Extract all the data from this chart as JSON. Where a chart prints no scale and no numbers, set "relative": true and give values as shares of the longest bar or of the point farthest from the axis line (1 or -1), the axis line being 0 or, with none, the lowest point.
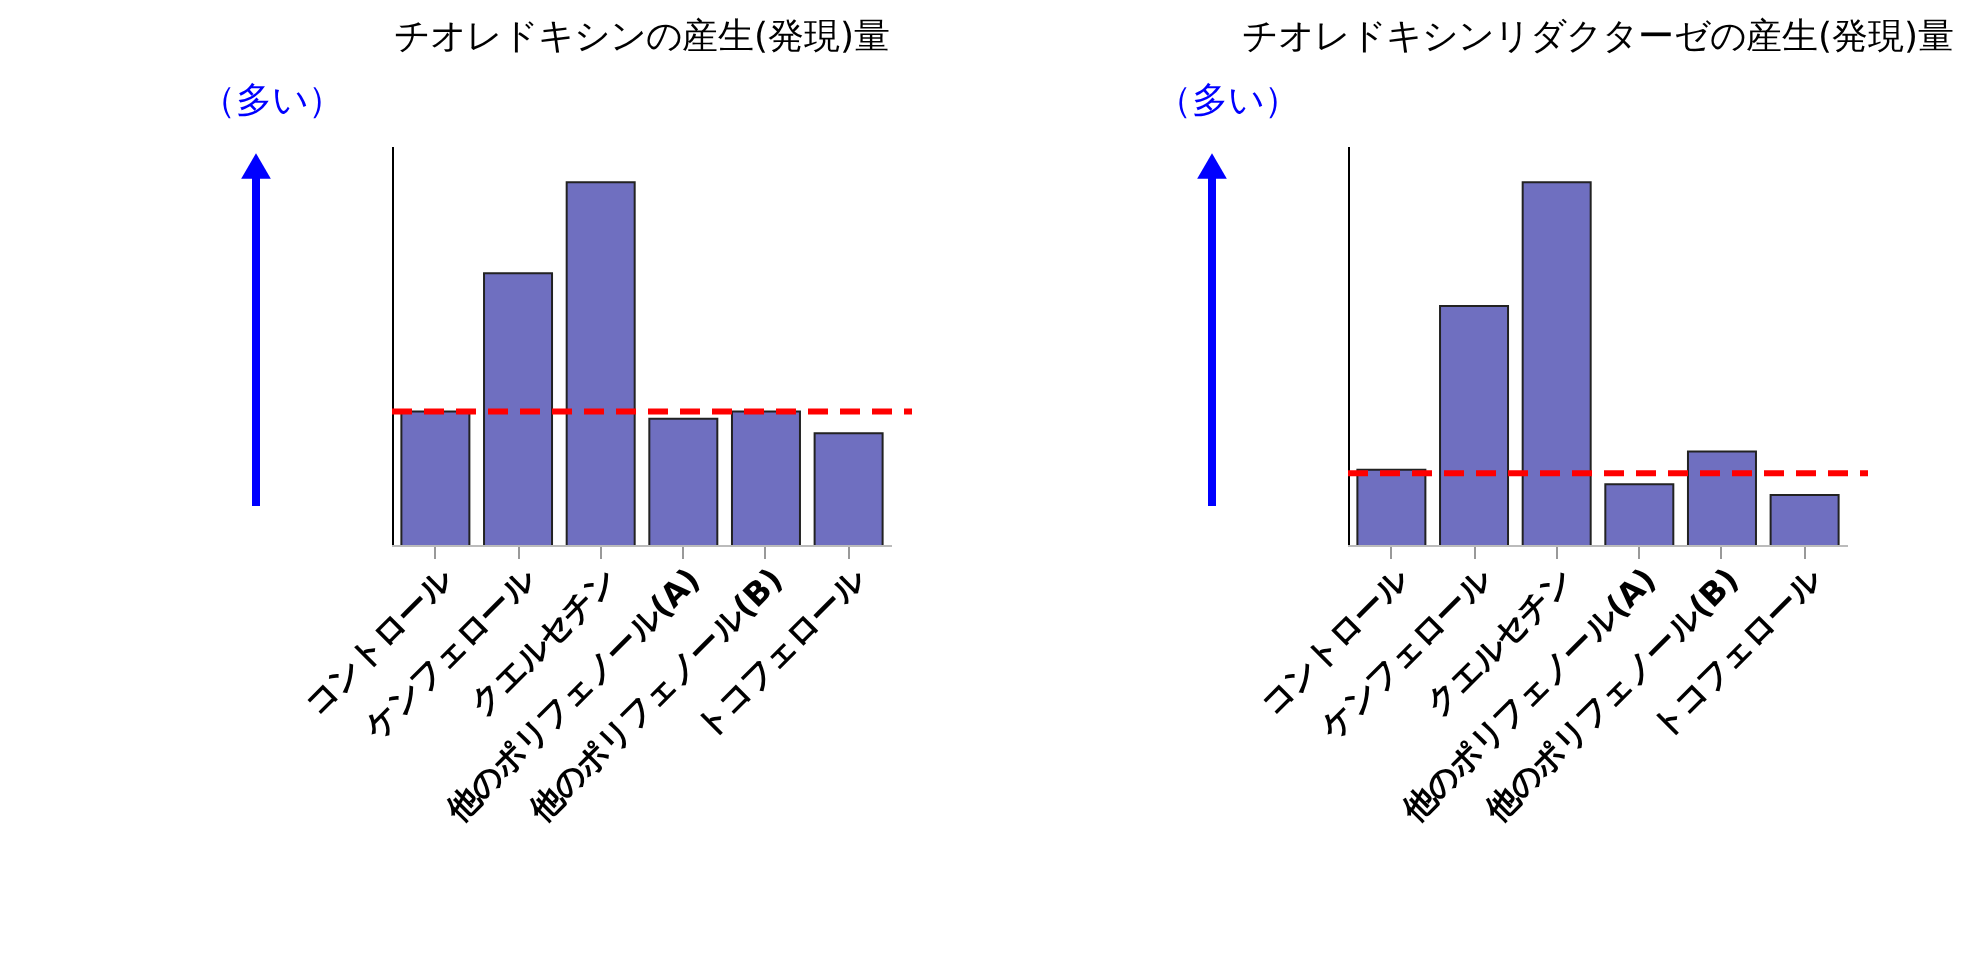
{
  "chart_data": [
    {
      "type": "bar",
      "title": "チオレドキシンの産生(発現)量",
      "relative": true,
      "categories": [
        "コントロール",
        "ケンフェロール",
        "クエルセチン",
        "他のポリフェノール(A)",
        "他のポリフェノール(B)",
        "トコフェロール"
      ],
      "values": [
        0.37,
        0.75,
        1.0,
        0.35,
        0.37,
        0.31
      ],
      "color": "#6f6fc0",
      "ref_lines": [
        {
          "axis": "y",
          "value": 0.37,
          "color": "#ff0000",
          "line_style": "dashed"
        }
      ],
      "annotations": [
        "（多い）"
      ],
      "grid": false
    },
    {
      "type": "bar",
      "title": "チオレドキシンリダクターゼの産生(発現)量",
      "relative": true,
      "categories": [
        "コントロール",
        "ケンフェロール",
        "クエルセチン",
        "他のポリフェノール(A)",
        "他のポリフェノール(B)",
        "トコフェロール"
      ],
      "values": [
        0.21,
        0.66,
        1.0,
        0.17,
        0.26,
        0.14
      ],
      "color": "#6f6fc0",
      "ref_lines": [
        {
          "axis": "y",
          "value": 0.2,
          "color": "#ff0000",
          "line_style": "dashed"
        }
      ],
      "annotations": [
        "（多い）"
      ],
      "grid": false
    }
  ]
}
